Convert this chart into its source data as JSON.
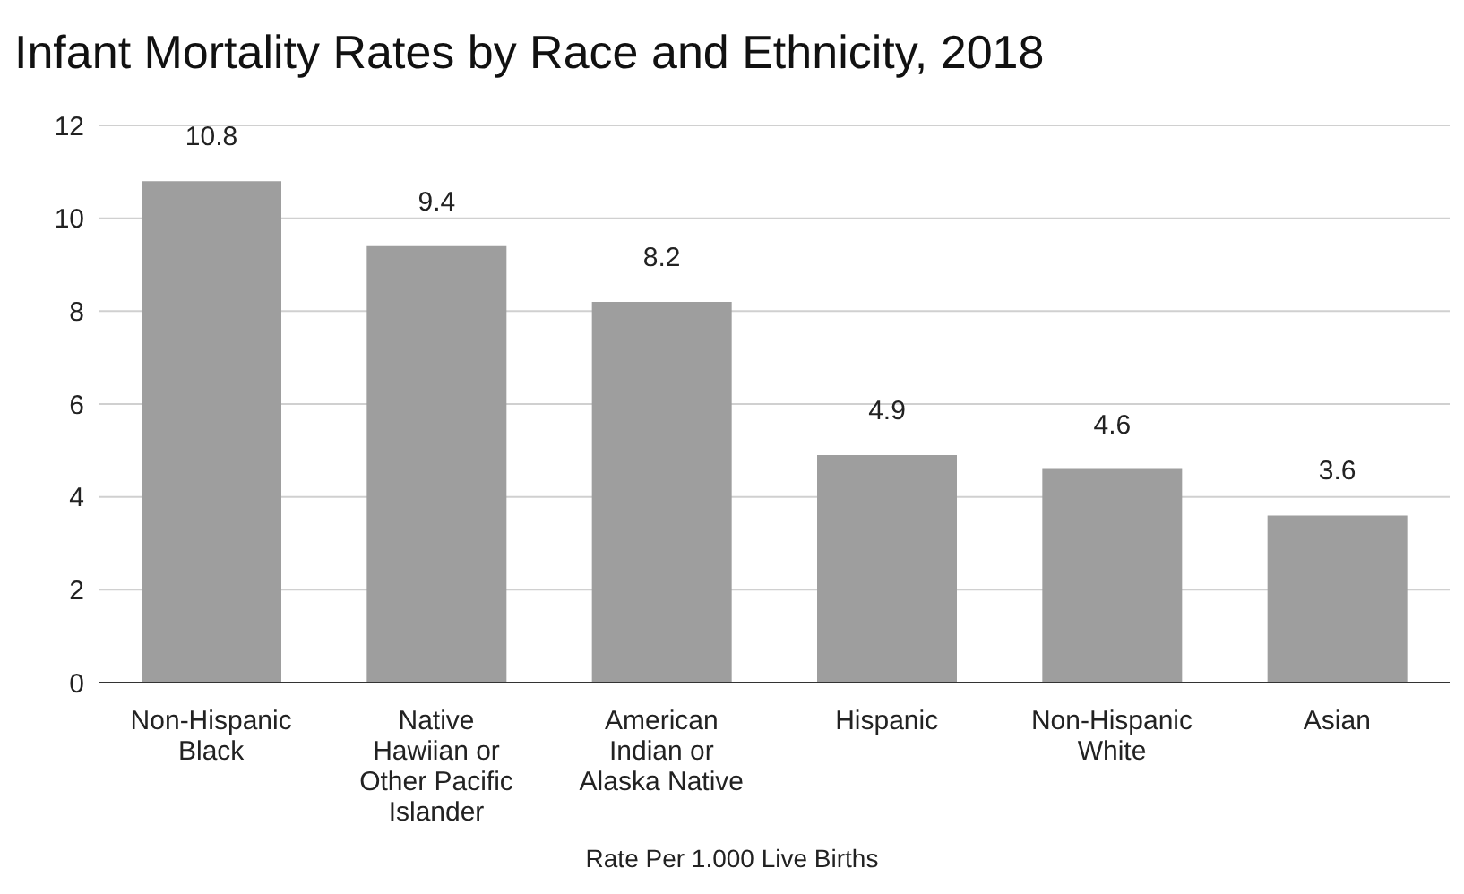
{
  "chart_data": {
    "type": "bar",
    "title": "Infant Mortality Rates by Race and Ethnicity, 2018",
    "xlabel": "Rate Per 1.000 Live Births",
    "categories": [
      "Non-Hispanic Black",
      "Native Hawiian or Other Pacific Islander",
      "American Indian or Alaska Native",
      "Hispanic",
      "Non-Hispanic White",
      "Asian"
    ],
    "values": [
      10.8,
      9.4,
      8.2,
      4.9,
      4.6,
      3.6
    ],
    "color": "#9e9e9e",
    "ylim": [
      0,
      12
    ],
    "yticks": [
      0,
      2,
      4,
      6,
      8,
      10,
      12
    ],
    "grid": "y",
    "data_labels": true
  }
}
